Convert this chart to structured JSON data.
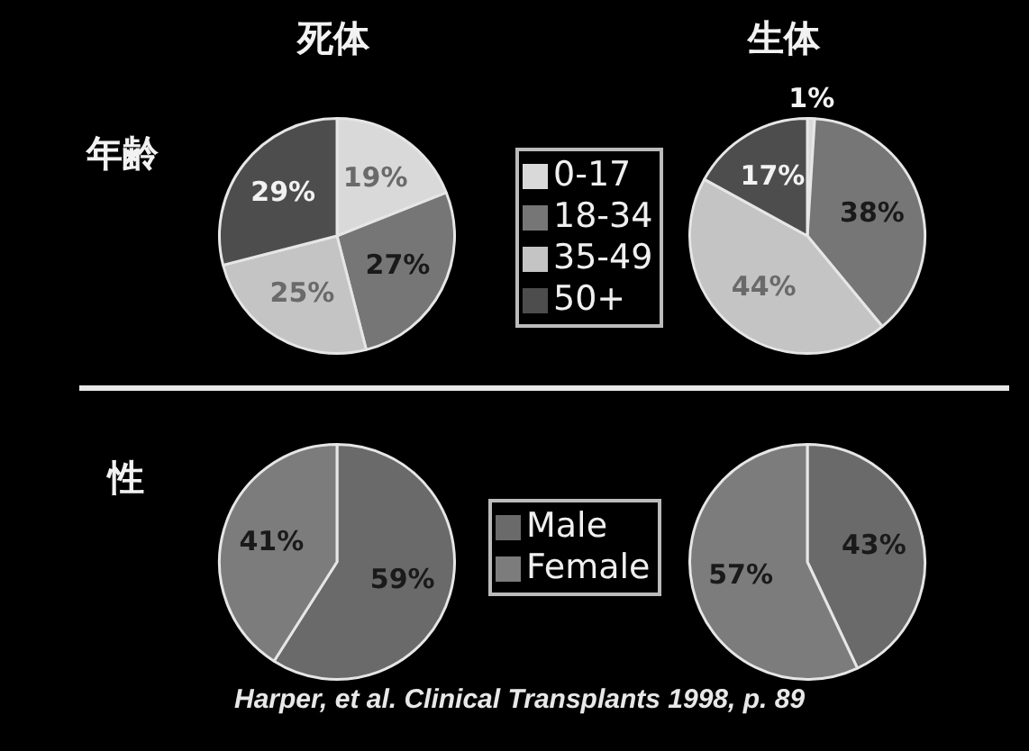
{
  "chart_data": [
    {
      "type": "pie",
      "title": "死体",
      "ylabel": "年齢",
      "categories": [
        "0-17",
        "18-34",
        "35-49",
        "50+"
      ],
      "values": [
        19,
        27,
        25,
        29
      ],
      "value_labels": [
        "19%",
        "27%",
        "25%",
        "29%"
      ],
      "colors": [
        "#d9d9d9",
        "#767676",
        "#c4c4c4",
        "#4d4d4d"
      ],
      "legend": "right"
    },
    {
      "type": "pie",
      "title": "生体",
      "categories": [
        null,
        null,
        null,
        null
      ],
      "values": [
        1,
        38,
        44,
        17
      ],
      "value_labels": [
        "1%",
        "38%",
        "44%",
        "17%"
      ],
      "colors": [
        "#d9d9d9",
        "#767676",
        "#c4c4c4",
        "#4d4d4d"
      ]
    },
    {
      "type": "pie",
      "ylabel": "性",
      "categories": [
        "Male",
        "Female"
      ],
      "values": [
        59,
        41
      ],
      "value_labels": [
        "59%",
        "41%"
      ],
      "colors": [
        "#6a6a6a",
        "#7c7c7c"
      ],
      "legend": "right"
    },
    {
      "type": "pie",
      "categories": [
        null,
        null
      ],
      "values": [
        43,
        57
      ],
      "value_labels": [
        "43%",
        "57%"
      ],
      "colors": [
        "#6a6a6a",
        "#7c7c7c"
      ],
      "annotations": [
        "Harper, et al. Clinical Transplants 1998, p. 89"
      ]
    }
  ]
}
